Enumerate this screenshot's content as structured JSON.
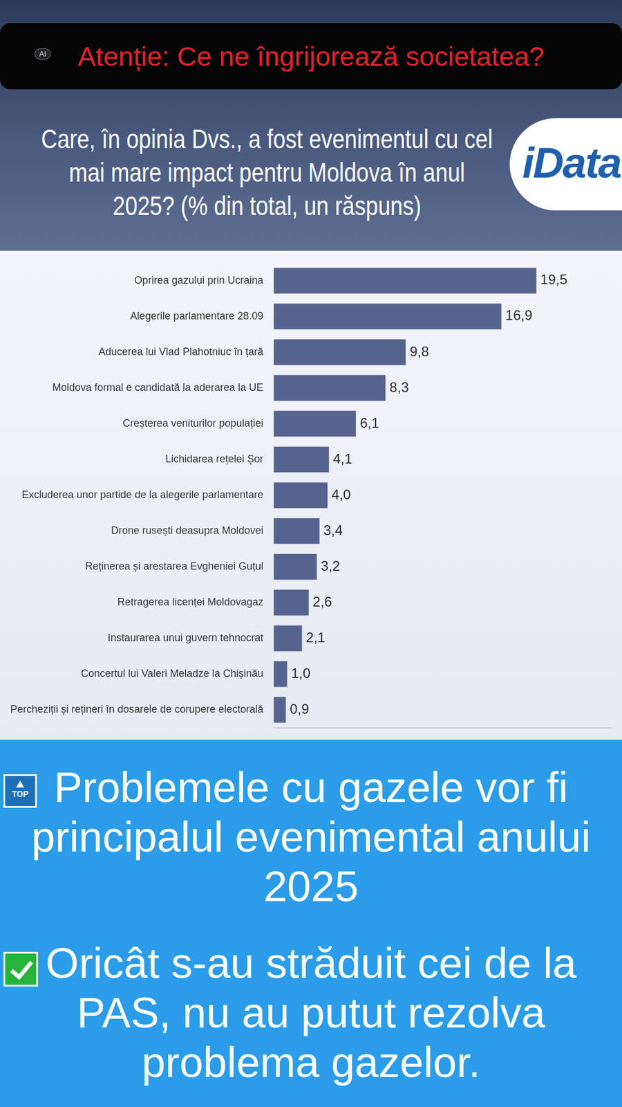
{
  "banner": "Atenție: Ce ne îngrijorează societatea?",
  "badge": "AI",
  "logo": "iData",
  "icon_label": "TOP",
  "captions": [
    "Problemele cu gazele vor fi principalul evenimental anului 2025",
    "Oricât s-au străduit cei de la PAS, nu au putut rezolva problema gazelor."
  ],
  "chart_data": {
    "type": "bar",
    "orientation": "horizontal",
    "title": "Care, în opinia Dvs., a fost evenimentul cu cel mai mare impact pentru Moldova în anul 2025? (% din total, un răspuns)",
    "categories": [
      "Oprirea gazului prin Ucraina",
      "Alegerile parlamentare 28.09",
      "Aducerea lui Vlad Plahotniuc în țară",
      "Moldova formal e candidată la aderarea la UE",
      "Creșterea veniturilor populației",
      "Lichidarea rețelei Șor",
      "Excluderea unor partide de la alegerile parlamentare",
      "Drone rusești deasupra Moldovei",
      "Reținerea și arestarea Evgheniei Guțul",
      "Retragerea licenței Moldovagaz",
      "Instaurarea unui guvern tehnocrat",
      "Concertul lui Valeri Meladze la Chișinău",
      "Percheziții și rețineri în dosarele de corupere electorală"
    ],
    "values": [
      19.5,
      16.9,
      9.8,
      8.3,
      6.1,
      4.1,
      4.0,
      3.4,
      3.2,
      2.6,
      2.1,
      1.0,
      0.9
    ],
    "value_labels": [
      "19,5",
      "16,9",
      "9,8",
      "8,3",
      "6,1",
      "4,1",
      "4,0",
      "3,4",
      "3,2",
      "2,6",
      "2,1",
      "1,0",
      "0,9"
    ],
    "data_labels": true,
    "color": "#56638f",
    "xlim": [
      0,
      25
    ],
    "tick_labels": "y",
    "grid": false
  }
}
